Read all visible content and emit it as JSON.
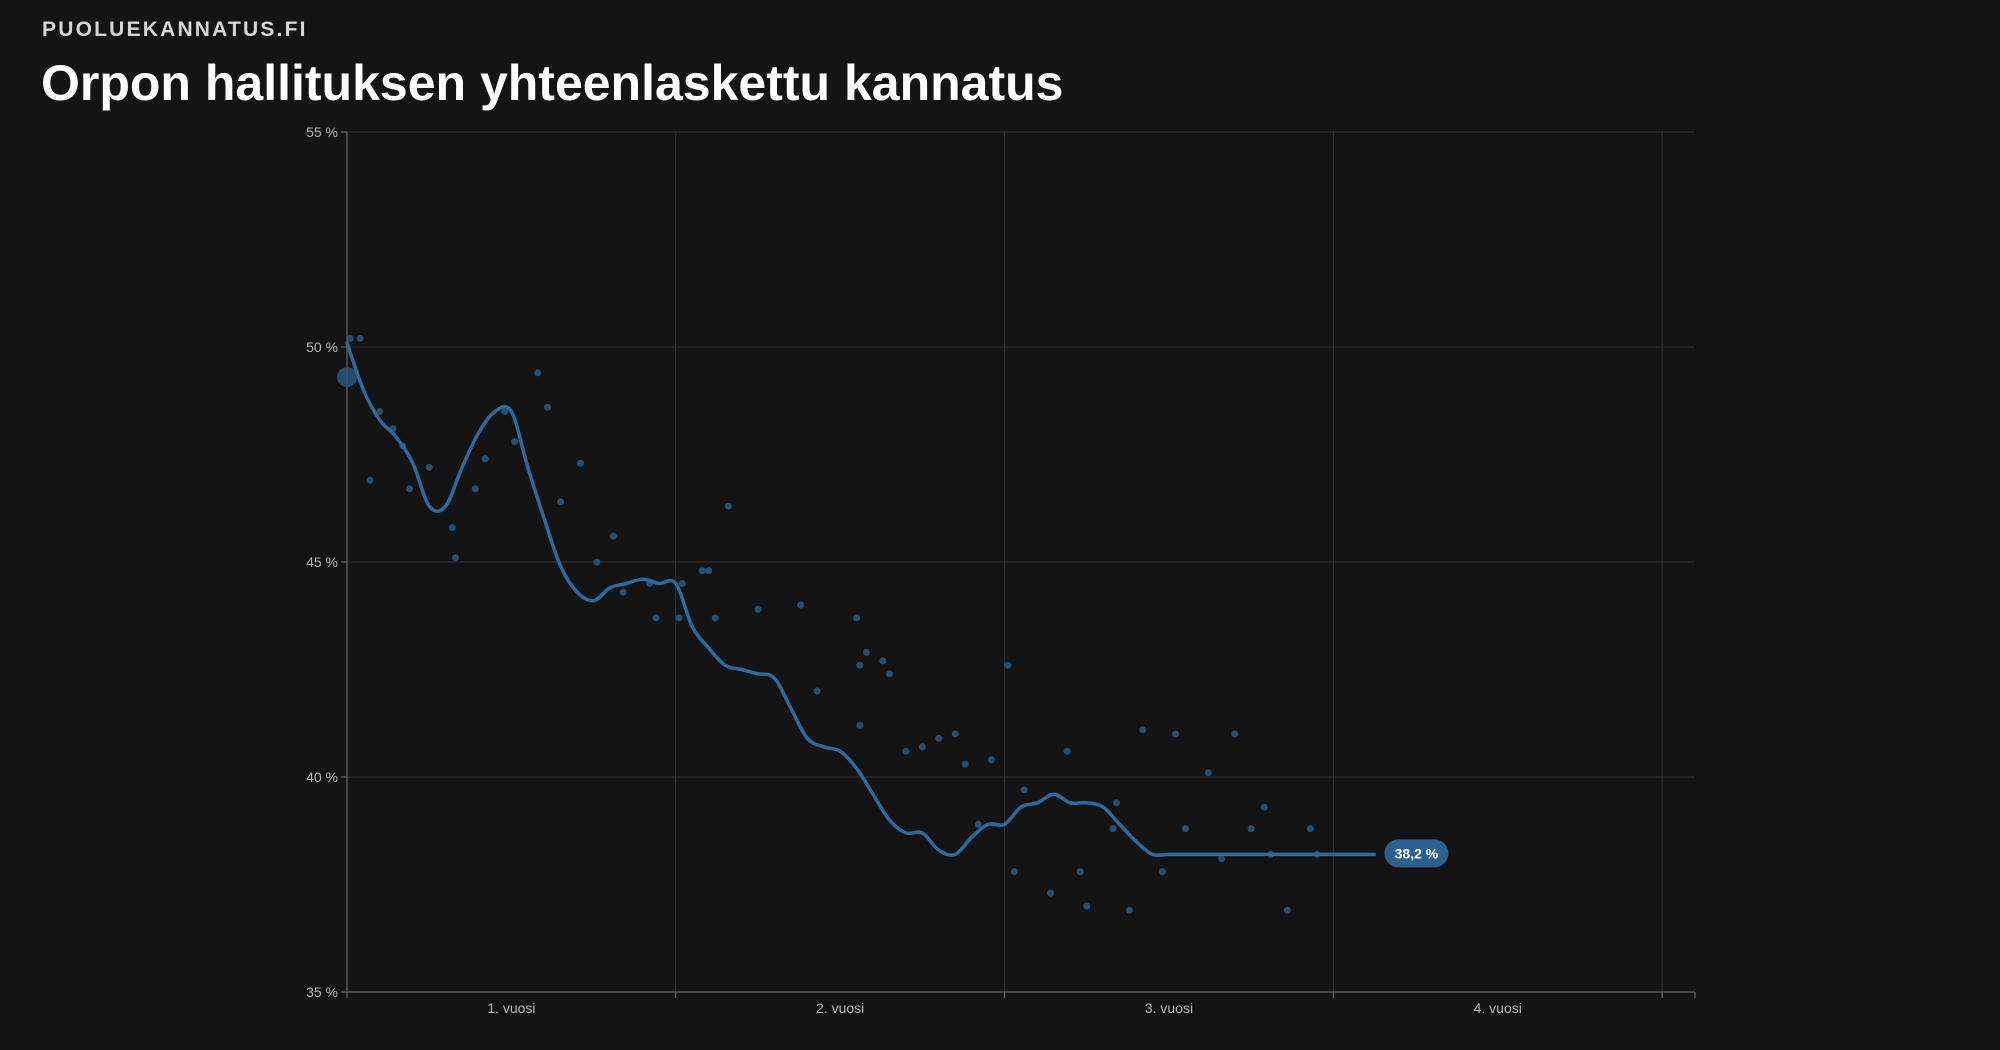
{
  "header": {
    "brand": "PUOLUEKANNATUS.FI",
    "title": "Orpon hallituksen yhteenlaskettu kannatus"
  },
  "colors": {
    "background": "#141414",
    "line": "#2e6a9b",
    "points": "#2a5578",
    "grid": "#333333",
    "label_bg": "#2b5f8e"
  },
  "chart_data": {
    "type": "line",
    "title": "Orpon hallituksen yhteenlaskettu kannatus",
    "xlabel": "",
    "ylabel": "",
    "xlim": [
      0,
      4.1
    ],
    "ylim": [
      35,
      55
    ],
    "y_ticks": [
      35,
      40,
      45,
      50,
      55
    ],
    "y_tick_labels": [
      "35 %",
      "40 %",
      "45 %",
      "50 %",
      "55 %"
    ],
    "x_ticks": [
      0.5,
      1.5,
      2.5,
      3.5
    ],
    "x_tick_labels": [
      "1. vuosi",
      "2. vuosi",
      "3. vuosi",
      "4. vuosi"
    ],
    "grid": true,
    "series": [
      {
        "kind": "trend",
        "x": [
          0.0,
          0.05,
          0.1,
          0.15,
          0.2,
          0.25,
          0.3,
          0.35,
          0.4,
          0.45,
          0.5,
          0.55,
          0.6,
          0.65,
          0.7,
          0.75,
          0.8,
          0.85,
          0.9,
          0.95,
          1.0,
          1.05,
          1.1,
          1.15,
          1.2,
          1.25,
          1.3,
          1.35,
          1.4,
          1.45,
          1.5,
          1.55,
          1.6,
          1.65,
          1.7,
          1.75,
          1.8,
          1.85,
          1.9,
          1.95,
          2.0,
          2.05,
          2.1,
          2.15,
          2.2,
          2.25,
          2.3,
          2.35,
          2.4,
          2.45,
          2.5,
          2.55,
          2.6,
          2.65,
          2.7,
          2.75,
          2.8,
          2.85,
          2.9,
          2.95,
          3.0,
          3.05,
          3.1,
          3.125
        ],
        "values": [
          50.1,
          49.0,
          48.3,
          47.9,
          47.3,
          46.3,
          46.3,
          47.2,
          48.0,
          48.5,
          48.5,
          47.2,
          46.0,
          44.9,
          44.3,
          44.1,
          44.4,
          44.5,
          44.6,
          44.5,
          44.5,
          43.5,
          43.0,
          42.6,
          42.5,
          42.4,
          42.3,
          41.6,
          40.9,
          40.7,
          40.6,
          40.2,
          39.6,
          39.0,
          38.7,
          38.7,
          38.3,
          38.2,
          38.6,
          38.9,
          38.9,
          39.3,
          39.4,
          39.6,
          39.4,
          39.4,
          39.3,
          38.9,
          38.5,
          38.2,
          38.2,
          38.2,
          38.2,
          38.2,
          38.2,
          38.2,
          38.2,
          38.2,
          38.2,
          38.2,
          38.2,
          38.2,
          38.2,
          38.2
        ]
      },
      {
        "kind": "polls",
        "x": [
          0.0,
          0.01,
          0.04,
          0.07,
          0.1,
          0.14,
          0.17,
          0.19,
          0.25,
          0.32,
          0.33,
          0.39,
          0.42,
          0.48,
          0.51,
          0.58,
          0.61,
          0.65,
          0.71,
          0.76,
          0.81,
          0.84,
          0.92,
          0.94,
          1.01,
          1.02,
          1.08,
          1.1,
          1.12,
          1.16,
          1.25,
          1.38,
          1.43,
          1.56,
          1.55,
          1.56,
          1.58,
          1.63,
          1.65,
          1.7,
          1.75,
          1.8,
          1.85,
          1.88,
          1.92,
          1.96,
          2.01,
          2.03,
          2.06,
          2.14,
          2.19,
          2.23,
          2.25,
          2.33,
          2.34,
          2.38,
          2.42,
          2.48,
          2.52,
          2.55,
          2.62,
          2.66,
          2.7,
          2.75,
          2.79,
          2.81,
          2.86,
          2.93,
          2.95
        ],
        "values": [
          49.3,
          50.2,
          50.2,
          46.9,
          48.5,
          48.1,
          47.7,
          46.7,
          47.2,
          45.8,
          45.1,
          46.7,
          47.4,
          48.5,
          47.8,
          49.4,
          48.6,
          46.4,
          47.3,
          45.0,
          45.6,
          44.3,
          44.5,
          43.7,
          43.7,
          44.5,
          44.8,
          44.8,
          43.7,
          46.3,
          43.9,
          44.0,
          42.0,
          42.6,
          43.7,
          41.2,
          42.9,
          42.7,
          42.4,
          40.6,
          40.7,
          40.9,
          41.0,
          40.3,
          38.9,
          40.4,
          42.6,
          37.8,
          39.7,
          37.3,
          40.6,
          37.8,
          37.0,
          38.8,
          39.4,
          36.9,
          41.1,
          37.8,
          41.0,
          38.8,
          40.1,
          38.1,
          41.0,
          38.8,
          39.3,
          38.2,
          36.9,
          38.8,
          38.2
        ]
      }
    ],
    "last_value_label": "38,2 %"
  }
}
